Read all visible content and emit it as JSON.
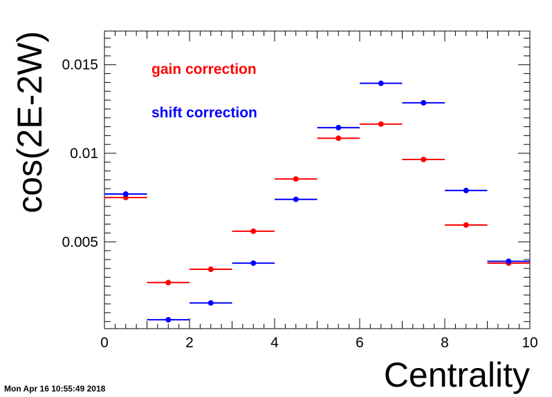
{
  "chart_data": {
    "type": "scatter",
    "xlabel": "Centrality",
    "ylabel": "cos(2E-2W)",
    "xlim": [
      0,
      10
    ],
    "ylim": [
      0.0001,
      0.0169
    ],
    "x_ticks": [
      0,
      2,
      4,
      6,
      8,
      10
    ],
    "x_tick_labels": [
      "0",
      "2",
      "4",
      "6",
      "8",
      "10"
    ],
    "y_ticks": [
      0.005,
      0.01,
      0.015
    ],
    "y_tick_labels": [
      "0.005",
      "0.01",
      "0.015"
    ],
    "x_bin_halfwidth": 0.5,
    "legend_position": "top-left",
    "series": [
      {
        "name": "gain correction",
        "color": "#ff0000",
        "x": [
          0.5,
          1.5,
          2.5,
          3.5,
          4.5,
          5.5,
          6.5,
          7.5,
          8.5,
          9.5
        ],
        "y": [
          0.0075,
          0.0027,
          0.00345,
          0.0056,
          0.00855,
          0.01085,
          0.01165,
          0.00965,
          0.00595,
          0.0038
        ]
      },
      {
        "name": "shift correction",
        "color": "#0000ff",
        "x": [
          0.5,
          1.5,
          2.5,
          3.5,
          4.5,
          5.5,
          6.5,
          7.5,
          8.5,
          9.5
        ],
        "y": [
          0.0077,
          0.0006,
          0.00155,
          0.0038,
          0.0074,
          0.01145,
          0.01395,
          0.01285,
          0.0079,
          0.0039
        ]
      }
    ]
  },
  "timestamp": "Mon Apr 16 10:55:49 2018"
}
